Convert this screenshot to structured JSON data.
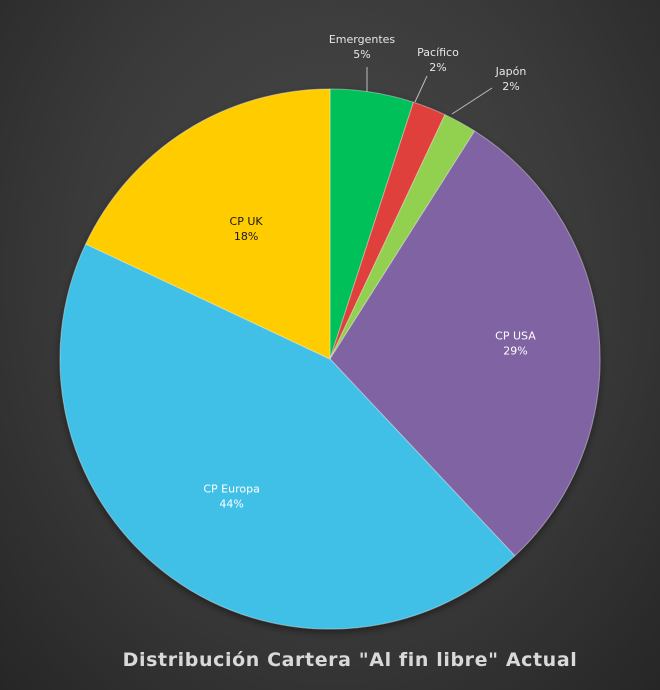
{
  "chart_data": {
    "type": "pie",
    "title": "Distribución Cartera \"Al fin libre\" Actual",
    "slices": [
      {
        "label": "Emergentes",
        "value": 5,
        "percent_label": "5%",
        "color": "#00c05a"
      },
      {
        "label": "Pacífico",
        "value": 2,
        "percent_label": "2%",
        "color": "#e0403a"
      },
      {
        "label": "Japón",
        "value": 2,
        "percent_label": "2%",
        "color": "#92d050"
      },
      {
        "label": "CP USA",
        "value": 29,
        "percent_label": "29%",
        "color": "#8064a2"
      },
      {
        "label": "CP Europa",
        "value": 44,
        "percent_label": "44%",
        "color": "#3fc0e6"
      },
      {
        "label": "CP UK",
        "value": 18,
        "percent_label": "18%",
        "color": "#ffcc00"
      }
    ],
    "start_angle_deg": 0,
    "direction": "clockwise",
    "legend": "none"
  }
}
